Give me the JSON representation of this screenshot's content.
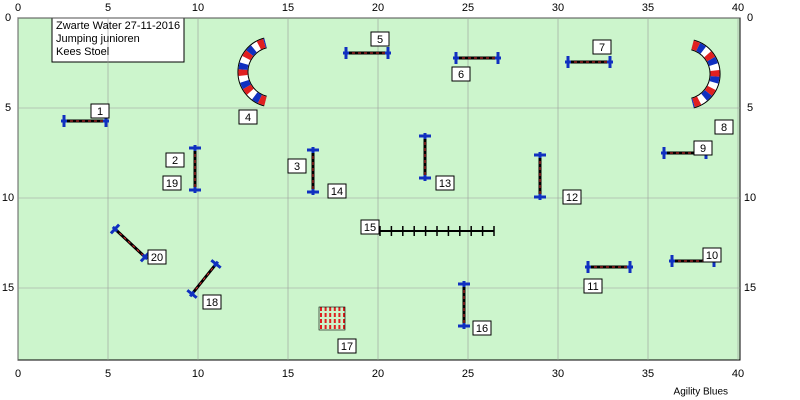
{
  "header": {
    "lines": [
      "Zwarte Water 27-11-2016",
      "Jumping junioren",
      "Kees Stoel"
    ]
  },
  "field": {
    "xticks": [
      0,
      5,
      10,
      15,
      20,
      25,
      30,
      35,
      40
    ],
    "yticks": [
      0,
      5,
      10,
      15
    ]
  },
  "obstacles": [
    "1",
    "2",
    "3",
    "4",
    "5",
    "6",
    "7",
    "8",
    "9",
    "10",
    "11",
    "12",
    "13",
    "14",
    "15",
    "16",
    "17",
    "18",
    "19",
    "20"
  ],
  "footer": "Agility Blues"
}
